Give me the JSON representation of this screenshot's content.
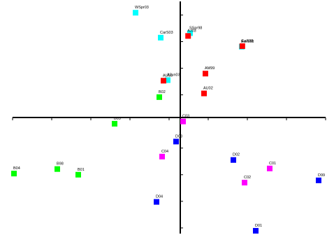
{
  "chart_data": {
    "type": "scatter",
    "title": "",
    "xlabel": "",
    "ylabel": "",
    "xlim": [
      -6,
      5.2
    ],
    "ylim": [
      -4.1,
      4.1
    ],
    "grid": false,
    "legend": "none",
    "x_ticks": [
      -6,
      -4.6,
      -3.2,
      -1.8,
      -0.4,
      1.0,
      2.4,
      3.8,
      5.2
    ],
    "y_ticks": [
      -3.9,
      -2.96,
      -2.02,
      -1.08,
      -0.14,
      0.8,
      1.74,
      2.68,
      3.62
    ],
    "groups": [
      {
        "color": "#00ffff",
        "points": [
          {
            "label": "WSpr03",
            "x": -1.6,
            "y": 3.7
          },
          {
            "label": "CarS03",
            "x": -0.7,
            "y": 2.82
          },
          {
            "label": "SSpr98",
            "x": 0.35,
            "y": 2.98
          },
          {
            "label": "EarS98",
            "x": 2.2,
            "y": 2.5
          },
          {
            "label": "AJun03",
            "x": -0.45,
            "y": 1.32
          }
        ]
      },
      {
        "color": "#ff0000",
        "points": [
          {
            "label": "AJ03",
            "x": 0.28,
            "y": 2.88
          },
          {
            "label": "EaS98",
            "x": 2.22,
            "y": 2.52
          },
          {
            "label": "AM99",
            "x": 0.9,
            "y": 1.55
          },
          {
            "label": "AU03",
            "x": -0.6,
            "y": 1.3
          },
          {
            "label": "AU02",
            "x": 0.85,
            "y": 0.85
          }
        ]
      },
      {
        "color": "#00ff00",
        "points": [
          {
            "label": "B02",
            "x": -0.75,
            "y": 0.72
          },
          {
            "label": "B03",
            "x": -2.35,
            "y": -0.22
          },
          {
            "label": "B04",
            "x": -5.95,
            "y": -1.98
          },
          {
            "label": "B98",
            "x": -4.4,
            "y": -1.82
          },
          {
            "label": "B01",
            "x": -3.65,
            "y": -2.02
          }
        ]
      },
      {
        "color": "#ff00ff",
        "points": [
          {
            "label": "C03",
            "x": 0.1,
            "y": -0.14
          },
          {
            "label": "C04",
            "x": -0.65,
            "y": -1.38
          },
          {
            "label": "C01",
            "x": 3.2,
            "y": -1.8
          },
          {
            "label": "C02",
            "x": 2.3,
            "y": -2.3
          }
        ]
      },
      {
        "color": "#0000ff",
        "points": [
          {
            "label": "D03",
            "x": -0.15,
            "y": -0.85
          },
          {
            "label": "D02",
            "x": 1.9,
            "y": -1.5
          },
          {
            "label": "D99",
            "x": 4.95,
            "y": -2.22
          },
          {
            "label": "D04",
            "x": -0.85,
            "y": -2.98
          },
          {
            "label": "D01",
            "x": 2.7,
            "y": -4.0
          }
        ]
      }
    ]
  }
}
